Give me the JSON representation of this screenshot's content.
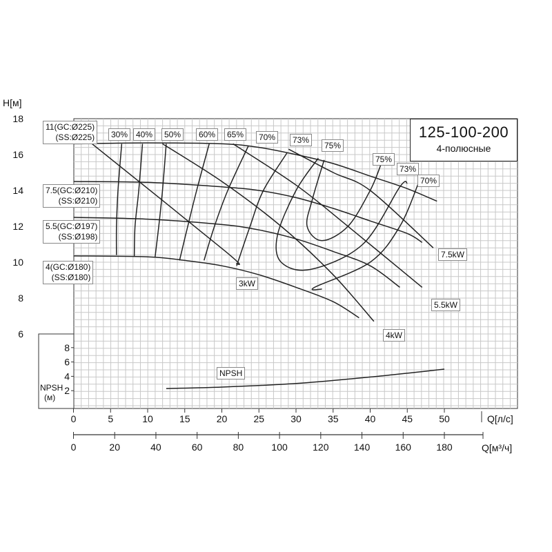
{
  "header": {
    "title": "125-100-200",
    "subtitle": "4-полюсные"
  },
  "chart_data": {
    "type": "line",
    "title": "125-100-200",
    "subtitle": "4-полюсные",
    "y_label": "H[м]",
    "x_label": "Q[л/с]",
    "x2_label": "Q[м³/ч]",
    "y_ticks": [
      "6",
      "8",
      "10",
      "12",
      "14",
      "16",
      "18"
    ],
    "x_ticks": [
      "0",
      "5",
      "10",
      "15",
      "20",
      "25",
      "30",
      "35",
      "40",
      "45",
      "50"
    ],
    "x2_ticks": [
      "0",
      "20",
      "40",
      "60",
      "80",
      "100",
      "120",
      "140",
      "160",
      "180"
    ],
    "ylim": [
      6,
      18
    ],
    "xlim": [
      0,
      59
    ],
    "grid": true,
    "head_curves": [
      {
        "label_line1": "11(GC:Ø225)",
        "label_line2": "(SS:Ø225)",
        "points": [
          [
            0,
            16.6
          ],
          [
            10,
            16.65
          ],
          [
            20,
            16.6
          ],
          [
            25,
            16.4
          ],
          [
            30,
            16.0
          ],
          [
            35,
            15.5
          ],
          [
            40,
            14.8
          ],
          [
            45,
            14.1
          ],
          [
            49,
            13.4
          ]
        ]
      },
      {
        "label_line1": "7.5(GC:Ø210)",
        "label_line2": "(SS:Ø210)",
        "points": [
          [
            0,
            14.5
          ],
          [
            10,
            14.45
          ],
          [
            20,
            14.2
          ],
          [
            25,
            14.0
          ],
          [
            30,
            13.6
          ],
          [
            35,
            13.0
          ],
          [
            40,
            12.3
          ],
          [
            45,
            11.6
          ],
          [
            47,
            11.1
          ]
        ]
      },
      {
        "label_line1": "5.5(GC:Ø197)",
        "label_line2": "(SS:Ø198)",
        "points": [
          [
            0,
            12.5
          ],
          [
            10,
            12.4
          ],
          [
            20,
            12.1
          ],
          [
            25,
            11.8
          ],
          [
            30,
            11.3
          ],
          [
            35,
            10.6
          ],
          [
            40,
            9.8
          ],
          [
            44,
            8.6
          ]
        ]
      },
      {
        "label_line1": "4(GC:Ø180)",
        "label_line2": "(SS:Ø180)",
        "points": [
          [
            0,
            10.35
          ],
          [
            10,
            10.3
          ],
          [
            15,
            10.1
          ],
          [
            20,
            9.8
          ],
          [
            25,
            9.3
          ],
          [
            30,
            8.6
          ],
          [
            35,
            7.8
          ],
          [
            38.5,
            6.9
          ]
        ]
      }
    ],
    "power_lines": [
      {
        "label": "3kW",
        "points": [
          [
            2.5,
            16.6
          ],
          [
            20.5,
            10.6
          ],
          [
            22,
            9.9
          ]
        ]
      },
      {
        "label": "4kW",
        "points": [
          [
            12,
            16.6
          ],
          [
            20,
            14.5
          ],
          [
            28,
            12.0
          ],
          [
            35,
            9.3
          ],
          [
            40.5,
            6.7
          ]
        ]
      },
      {
        "label": "5.5kW",
        "points": [
          [
            21.5,
            16.6
          ],
          [
            30,
            14.3
          ],
          [
            37,
            12.0
          ],
          [
            47,
            8.6
          ]
        ]
      },
      {
        "label": "7.5kW",
        "points": [
          [
            29,
            16.3
          ],
          [
            35,
            15.0
          ],
          [
            40,
            14.0
          ],
          [
            48.5,
            10.8
          ]
        ]
      }
    ],
    "efficiency_lines": [
      {
        "label": "30%",
        "points": [
          [
            6.5,
            16.6
          ],
          [
            6,
            14
          ],
          [
            5.8,
            12
          ],
          [
            5.8,
            10.4
          ]
        ]
      },
      {
        "label": "40%",
        "points": [
          [
            9.3,
            16.6
          ],
          [
            8.8,
            14
          ],
          [
            8.3,
            12
          ],
          [
            8.2,
            10.3
          ]
        ]
      },
      {
        "label": "50%",
        "points": [
          [
            12.5,
            16.6
          ],
          [
            12,
            14
          ],
          [
            11.5,
            12
          ],
          [
            11,
            10.3
          ]
        ]
      },
      {
        "label": "60%",
        "points": [
          [
            18.3,
            16.6
          ],
          [
            16.6,
            14
          ],
          [
            15.4,
            12
          ],
          [
            14.3,
            10.1
          ]
        ]
      },
      {
        "label": "65%",
        "points": [
          [
            23.6,
            16.5
          ],
          [
            20.8,
            14
          ],
          [
            19,
            12
          ],
          [
            17.6,
            10.1
          ]
        ]
      },
      {
        "label": "70%",
        "points": [
          [
            28.8,
            16.1
          ],
          [
            25.6,
            14
          ],
          [
            23.8,
            12
          ],
          [
            22,
            9.8
          ]
        ]
      },
      {
        "label": "73%",
        "points": [
          [
            33,
            15.8
          ],
          [
            30,
            14
          ],
          [
            27.5,
            11.5
          ],
          [
            28,
            10
          ],
          [
            32,
            9.6
          ],
          [
            39,
            11
          ],
          [
            44,
            14.2
          ],
          [
            45,
            14.4
          ]
        ]
      },
      {
        "label": "75%",
        "points": [
          [
            33.8,
            15.7
          ],
          [
            32.2,
            13.5
          ],
          [
            31.5,
            12
          ],
          [
            33.5,
            11.2
          ],
          [
            37,
            12
          ],
          [
            40,
            14.0
          ],
          [
            41.5,
            15.5
          ]
        ]
      },
      {
        "label": "70%",
        "points": [
          [
            46.5,
            14.4
          ],
          [
            44,
            12
          ],
          [
            40,
            10.0
          ],
          [
            32.5,
            8.6
          ],
          [
            33.5,
            8.5
          ]
        ]
      }
    ],
    "npsh": {
      "label": "NPSH",
      "y_label_line1": "NPSH",
      "y_label_line2": "(м)",
      "y_ticks": [
        "2",
        "4",
        "6",
        "8"
      ],
      "points": [
        [
          12.5,
          2.3
        ],
        [
          20,
          2.5
        ],
        [
          30,
          3.0
        ],
        [
          40,
          3.9
        ],
        [
          50,
          5.0
        ]
      ]
    }
  }
}
